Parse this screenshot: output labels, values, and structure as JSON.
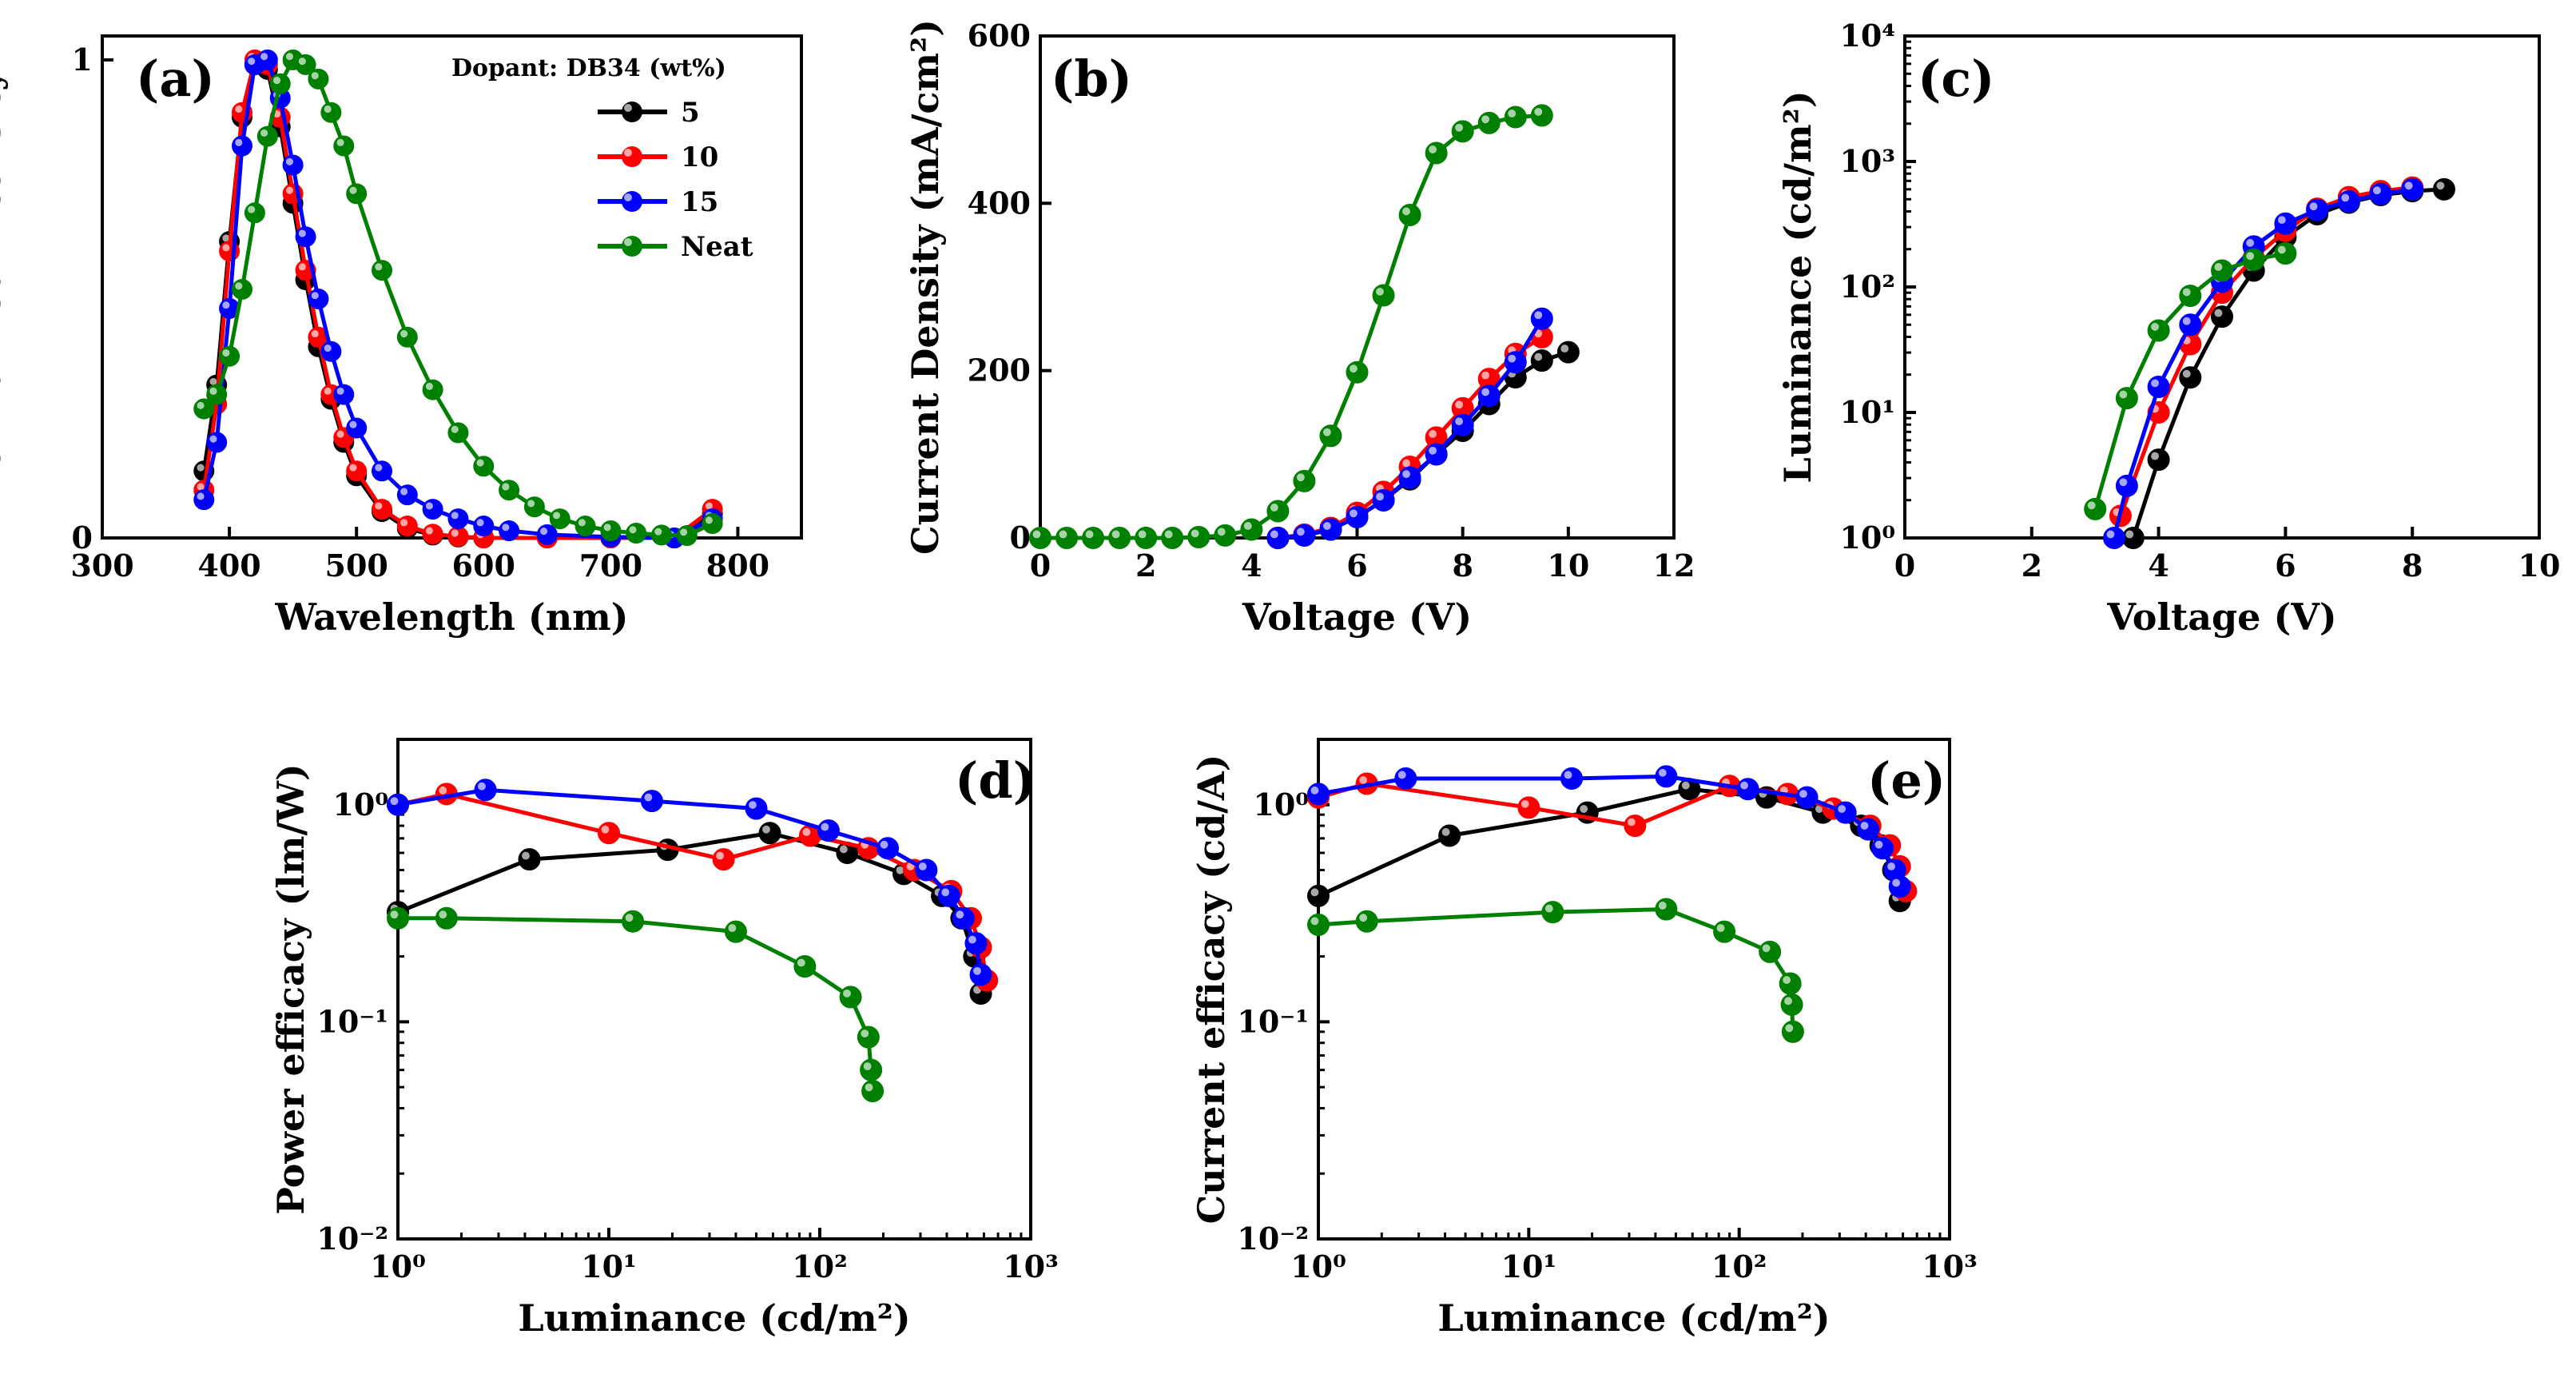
{
  "colors": {
    "5": "#000000",
    "10": "#ff0000",
    "15": "#0000ff",
    "Neat": "#008000"
  },
  "legend": {
    "title": "Dopant: DB34 (wt%)",
    "entries": [
      "5",
      "10",
      "15",
      "Neat"
    ]
  },
  "chart_data": [
    {
      "panel": "(a)",
      "type": "scatter",
      "xlabel": "Wavelength (nm)",
      "ylabel": "Normalized Intensity",
      "xlim": [
        300,
        850
      ],
      "ylim": [
        0,
        1.05
      ],
      "xticks": [
        300,
        400,
        500,
        600,
        700,
        800
      ],
      "yticks": [
        0,
        1
      ],
      "series": [
        {
          "name": "5",
          "x": [
            380,
            390,
            400,
            410,
            420,
            430,
            440,
            450,
            460,
            470,
            480,
            490,
            500,
            520,
            540,
            560,
            580,
            600,
            650,
            700,
            750,
            780
          ],
          "y": [
            0.14,
            0.32,
            0.62,
            0.88,
            0.99,
            0.98,
            0.86,
            0.7,
            0.54,
            0.4,
            0.29,
            0.2,
            0.13,
            0.055,
            0.02,
            0.006,
            0.002,
            0,
            0,
            0,
            0,
            0.05
          ]
        },
        {
          "name": "10",
          "x": [
            380,
            390,
            400,
            410,
            420,
            430,
            440,
            450,
            460,
            470,
            480,
            490,
            500,
            520,
            540,
            560,
            580,
            600,
            650,
            700,
            750,
            780
          ],
          "y": [
            0.1,
            0.28,
            0.6,
            0.89,
            1.0,
            0.99,
            0.88,
            0.72,
            0.56,
            0.42,
            0.3,
            0.21,
            0.14,
            0.06,
            0.025,
            0.008,
            0.003,
            0,
            0,
            0,
            0,
            0.06
          ]
        },
        {
          "name": "15",
          "x": [
            380,
            390,
            400,
            410,
            420,
            430,
            440,
            450,
            460,
            470,
            480,
            490,
            500,
            520,
            540,
            560,
            580,
            600,
            620,
            650,
            700,
            750,
            780
          ],
          "y": [
            0.08,
            0.2,
            0.48,
            0.82,
            0.99,
            1.0,
            0.92,
            0.78,
            0.63,
            0.5,
            0.39,
            0.3,
            0.23,
            0.14,
            0.09,
            0.06,
            0.04,
            0.025,
            0.015,
            0.007,
            0.002,
            0,
            0.04
          ]
        },
        {
          "name": "Neat",
          "x": [
            380,
            390,
            400,
            410,
            420,
            430,
            440,
            450,
            460,
            470,
            480,
            490,
            500,
            520,
            540,
            560,
            580,
            600,
            620,
            640,
            660,
            680,
            700,
            720,
            740,
            760,
            780
          ],
          "y": [
            0.27,
            0.3,
            0.38,
            0.52,
            0.68,
            0.84,
            0.95,
            1.0,
            0.99,
            0.96,
            0.89,
            0.82,
            0.72,
            0.56,
            0.42,
            0.31,
            0.22,
            0.15,
            0.1,
            0.065,
            0.04,
            0.025,
            0.015,
            0.01,
            0.006,
            0.005,
            0.03
          ]
        }
      ]
    },
    {
      "panel": "(b)",
      "type": "line",
      "xlabel": "Voltage (V)",
      "ylabel": "Current Density (mA/cm²)",
      "xlim": [
        0,
        12
      ],
      "ylim": [
        0,
        600
      ],
      "xticks": [
        0,
        2,
        4,
        6,
        8,
        10,
        12
      ],
      "yticks": [
        0,
        200,
        400,
        600
      ],
      "series": [
        {
          "name": "Neat",
          "x": [
            0,
            0.5,
            1,
            1.5,
            2,
            2.5,
            3,
            3.5,
            4,
            4.5,
            5,
            5.5,
            6,
            6.5,
            7,
            7.5,
            8,
            8.5,
            9,
            9.5
          ],
          "y": [
            0,
            0,
            0,
            0,
            0,
            0,
            1,
            3,
            10,
            32,
            68,
            122,
            198,
            290,
            386,
            460,
            486,
            496,
            503,
            505
          ]
        },
        {
          "name": "5",
          "x": [
            4.5,
            5,
            5.5,
            6,
            6.5,
            7,
            7.5,
            8,
            8.5,
            9,
            9.5,
            10
          ],
          "y": [
            0,
            3,
            10,
            25,
            45,
            70,
            100,
            128,
            160,
            192,
            212,
            222
          ]
        },
        {
          "name": "10",
          "x": [
            4.5,
            5,
            5.5,
            6,
            6.5,
            7,
            7.5,
            8,
            8.5,
            9,
            9.5
          ],
          "y": [
            0,
            4,
            12,
            30,
            55,
            85,
            120,
            155,
            190,
            220,
            240
          ]
        },
        {
          "name": "15",
          "x": [
            4.5,
            5,
            5.5,
            6,
            6.5,
            7,
            7.5,
            8,
            8.5,
            9,
            9.5
          ],
          "y": [
            0,
            3,
            10,
            25,
            45,
            72,
            100,
            135,
            170,
            210,
            262
          ]
        }
      ]
    },
    {
      "panel": "(c)",
      "type": "line",
      "xlabel": "Voltage (V)",
      "ylabel": "Luminance (cd/m²)",
      "xlim": [
        0,
        10
      ],
      "ylim": [
        1,
        10000
      ],
      "yscale": "log",
      "xticks": [
        0,
        2,
        4,
        6,
        8,
        10
      ],
      "yticks": [
        "10⁰",
        "10¹",
        "10²",
        "10³",
        "10⁴"
      ],
      "series": [
        {
          "name": "5",
          "x": [
            3.6,
            4,
            4.5,
            5,
            5.5,
            6,
            6.5,
            7,
            7.5,
            8,
            8.5
          ],
          "y": [
            1,
            4.2,
            19,
            58,
            135,
            250,
            380,
            470,
            540,
            580,
            600
          ]
        },
        {
          "name": "10",
          "x": [
            3.4,
            4,
            4.5,
            5,
            5.5,
            6,
            6.5,
            7,
            7.5,
            8
          ],
          "y": [
            1.5,
            10,
            35,
            90,
            170,
            280,
            420,
            520,
            580,
            620
          ]
        },
        {
          "name": "15",
          "x": [
            3.3,
            3.5,
            4,
            4.5,
            5,
            5.5,
            6,
            6.5,
            7,
            7.5,
            8
          ],
          "y": [
            1,
            2.6,
            16,
            50,
            110,
            210,
            320,
            410,
            480,
            550,
            600
          ]
        },
        {
          "name": "Neat",
          "x": [
            3,
            3.5,
            4,
            4.5,
            5,
            5.5,
            6
          ],
          "y": [
            1.7,
            13,
            45,
            85,
            135,
            165,
            185
          ]
        }
      ]
    },
    {
      "panel": "(d)",
      "type": "line",
      "xlabel": "Luminance (cd/m²)",
      "ylabel": "Power efficacy (lm/W)",
      "xlim": [
        1,
        1000
      ],
      "ylim": [
        0.01,
        2
      ],
      "xscale": "log",
      "yscale": "log",
      "xticks": [
        "10⁰",
        "10¹",
        "10²",
        "10³"
      ],
      "yticks": [
        "10⁻²",
        "10⁻¹",
        "10⁰"
      ],
      "series": [
        {
          "name": "5",
          "x": [
            1,
            4.2,
            19,
            58,
            135,
            250,
            380,
            470,
            540,
            580
          ],
          "y": [
            0.32,
            0.56,
            0.62,
            0.74,
            0.6,
            0.48,
            0.38,
            0.3,
            0.2,
            0.135
          ]
        },
        {
          "name": "10",
          "x": [
            1,
            1.7,
            10,
            35,
            90,
            170,
            280,
            420,
            520,
            580,
            620
          ],
          "y": [
            1.0,
            1.12,
            0.74,
            0.56,
            0.72,
            0.63,
            0.5,
            0.4,
            0.3,
            0.22,
            0.155
          ]
        },
        {
          "name": "15",
          "x": [
            1,
            2.6,
            16,
            50,
            110,
            210,
            320,
            410,
            480,
            550,
            580
          ],
          "y": [
            1.0,
            1.17,
            1.04,
            0.96,
            0.76,
            0.63,
            0.5,
            0.38,
            0.3,
            0.23,
            0.165
          ]
        },
        {
          "name": "Neat",
          "x": [
            1,
            1.7,
            13,
            40,
            85,
            140,
            170,
            175,
            178
          ],
          "y": [
            0.3,
            0.3,
            0.29,
            0.26,
            0.18,
            0.13,
            0.085,
            0.06,
            0.048
          ]
        }
      ]
    },
    {
      "panel": "(e)",
      "type": "line",
      "xlabel": "Luminance (cd/m²)",
      "ylabel": "Current efficacy (cd/A)",
      "xlim": [
        1,
        1000
      ],
      "ylim": [
        0.01,
        2
      ],
      "xscale": "log",
      "yscale": "log",
      "xticks": [
        "10⁰",
        "10¹",
        "10²",
        "10³"
      ],
      "yticks": [
        "10⁻²",
        "10⁻¹",
        "10⁰"
      ],
      "series": [
        {
          "name": "5",
          "x": [
            1,
            4.2,
            19,
            58,
            135,
            250,
            380,
            470,
            540,
            580
          ],
          "y": [
            0.38,
            0.72,
            0.92,
            1.18,
            1.08,
            0.92,
            0.8,
            0.65,
            0.5,
            0.36
          ]
        },
        {
          "name": "10",
          "x": [
            1,
            1.7,
            10,
            32,
            90,
            170,
            280,
            420,
            520,
            580,
            620
          ],
          "y": [
            1.08,
            1.25,
            0.97,
            0.8,
            1.22,
            1.12,
            0.96,
            0.8,
            0.65,
            0.52,
            0.4
          ]
        },
        {
          "name": "15",
          "x": [
            1,
            2.6,
            16,
            45,
            110,
            210,
            320,
            410,
            480,
            550,
            580
          ],
          "y": [
            1.12,
            1.32,
            1.32,
            1.35,
            1.18,
            1.08,
            0.92,
            0.77,
            0.63,
            0.5,
            0.42
          ]
        },
        {
          "name": "Neat",
          "x": [
            1,
            1.7,
            13,
            45,
            85,
            140,
            175,
            178,
            180
          ],
          "y": [
            0.28,
            0.29,
            0.32,
            0.33,
            0.26,
            0.21,
            0.15,
            0.12,
            0.09
          ]
        }
      ]
    }
  ]
}
